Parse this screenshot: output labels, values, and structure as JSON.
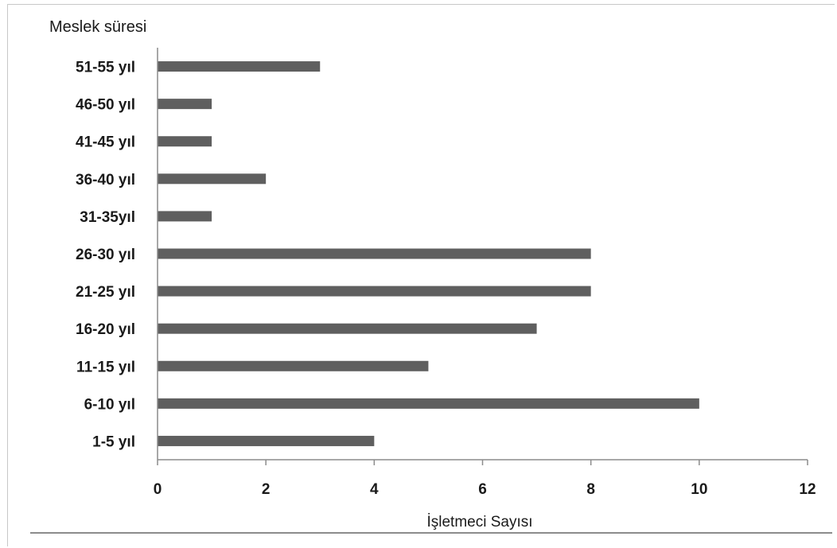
{
  "chart_data": {
    "type": "bar",
    "orientation": "horizontal",
    "categories": [
      "1-5 yıl",
      "6-10 yıl",
      "11-15 yıl",
      "16-20 yıl",
      "21-25 yıl",
      "26-30 yıl",
      "31-35yıl",
      "36-40 yıl",
      "41-45 yıl",
      "46-50 yıl",
      "51-55 yıl"
    ],
    "values": [
      4,
      10,
      5,
      7,
      8,
      8,
      1,
      2,
      1,
      1,
      3
    ],
    "title": "",
    "xlabel": "İşletmeci Sayısı",
    "ylabel": "Meslek süresi",
    "xlim": [
      0,
      12
    ],
    "x_ticks": [
      "0",
      "2",
      "4",
      "6",
      "8",
      "10",
      "12"
    ],
    "grid": false,
    "legend": "none",
    "bar_color": "#5f5f5f"
  }
}
